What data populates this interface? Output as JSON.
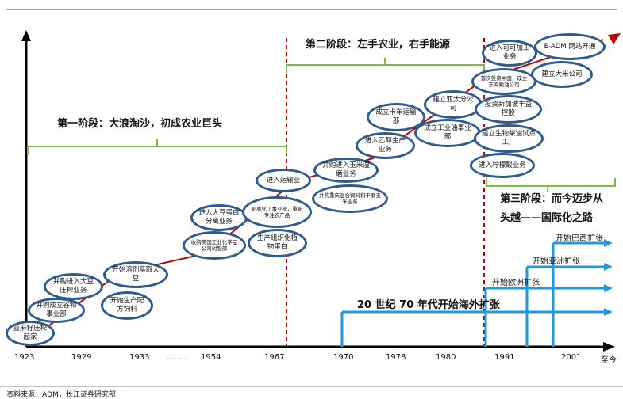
{
  "stages": {
    "stage1": "第一阶段：大浪淘沙，初成农业巨头",
    "stage2": "第二阶段：左手农业，右手能源",
    "stage3_line1": "第三阶段：而今迈步从",
    "stage3_line2": "头越——国际化之路"
  },
  "milestones": [
    "亚麻籽压榨起家",
    "并购成立谷物事业部",
    "并购进入大豆压榨业务",
    "开始生产配方饲料",
    "开始溶剂萃取大豆",
    "收购美国工业化学品公司树脂部",
    "进入大豆蛋白分离业务",
    "剥离化工事业部，重新专注农产品",
    "生产组织化植物蛋白",
    "进入运输业",
    "并购重庆混合饲料和干磨玉米业务",
    "并购进入玉米湿磨业务",
    "进入乙醇生产业务",
    "成立卡车运输部",
    "成立工业油事业部",
    "建立亚太分公司",
    "投资新加坡丰益控股",
    "首次投资中国，成立东海粮油公司",
    "进入可可加工业务",
    "E-ADM 网站开通",
    "建立大米公司",
    "建立生物柴油试点工厂",
    "进入柠檬酸业务"
  ],
  "expansion": {
    "seventies": "20 世纪 70 年代开始海外扩张",
    "europe": "开始欧洲扩张",
    "asia": "开始亚洲扩张",
    "brazil": "开始巴西扩张"
  },
  "years": [
    "1923",
    "1929",
    "1933",
    "........",
    "1954",
    "1967",
    "1970",
    "1978",
    "1980",
    "1991",
    "2001",
    "至今"
  ],
  "source": "资料来源：ADM，长江证券研究部",
  "colors": {
    "node_border": "#2e5a8c",
    "bracket": "#7dbb42",
    "trend": "#c00000",
    "divider": "#c00000",
    "expansion_arrows": "#1e9be0"
  }
}
